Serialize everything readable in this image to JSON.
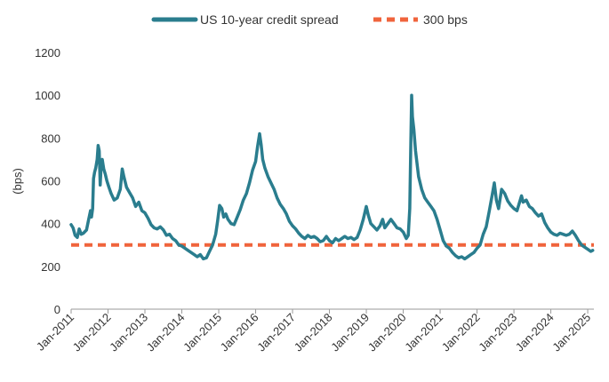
{
  "chart_data": {
    "type": "line",
    "ylabel": "(bps)",
    "ylim": [
      0,
      1200
    ],
    "yticks": [
      0,
      200,
      400,
      600,
      800,
      1000,
      1200
    ],
    "xlim": [
      "2011-01",
      "2025-03"
    ],
    "xticks": [
      "Jan-2011",
      "Jan-2012",
      "Jan-2013",
      "Jan-2014",
      "Jan-2015",
      "Jan-2016",
      "Jan-2017",
      "Jan-2018",
      "Jan-2019",
      "Jan-2020",
      "Jan-2021",
      "Jan-2022",
      "Jan-2023",
      "Jan-2024",
      "Jan-2025"
    ],
    "legend_position": "top-center",
    "series": [
      {
        "name": "US 10-year credit spread",
        "color": "#2a7d8e",
        "style": "solid",
        "points": [
          [
            "2011-01-01",
            395
          ],
          [
            "2011-01-20",
            380
          ],
          [
            "2011-02-10",
            345
          ],
          [
            "2011-03-01",
            335
          ],
          [
            "2011-03-20",
            375
          ],
          [
            "2011-04-10",
            350
          ],
          [
            "2011-05-01",
            355
          ],
          [
            "2011-06-01",
            370
          ],
          [
            "2011-06-20",
            415
          ],
          [
            "2011-07-10",
            460
          ],
          [
            "2011-07-20",
            430
          ],
          [
            "2011-08-01",
            470
          ],
          [
            "2011-08-10",
            610
          ],
          [
            "2011-08-20",
            640
          ],
          [
            "2011-09-01",
            660
          ],
          [
            "2011-09-15",
            700
          ],
          [
            "2011-09-25",
            765
          ],
          [
            "2011-10-05",
            740
          ],
          [
            "2011-10-15",
            580
          ],
          [
            "2011-10-25",
            680
          ],
          [
            "2011-11-05",
            700
          ],
          [
            "2011-11-20",
            655
          ],
          [
            "2011-12-05",
            630
          ],
          [
            "2011-12-20",
            600
          ],
          [
            "2012-01-10",
            570
          ],
          [
            "2012-02-01",
            540
          ],
          [
            "2012-03-01",
            510
          ],
          [
            "2012-04-01",
            520
          ],
          [
            "2012-05-01",
            560
          ],
          [
            "2012-05-20",
            655
          ],
          [
            "2012-06-05",
            620
          ],
          [
            "2012-07-01",
            570
          ],
          [
            "2012-08-01",
            545
          ],
          [
            "2012-09-01",
            520
          ],
          [
            "2012-10-01",
            480
          ],
          [
            "2012-11-01",
            500
          ],
          [
            "2012-12-01",
            460
          ],
          [
            "2013-01-01",
            450
          ],
          [
            "2013-02-01",
            425
          ],
          [
            "2013-03-01",
            395
          ],
          [
            "2013-04-01",
            380
          ],
          [
            "2013-05-01",
            375
          ],
          [
            "2013-06-01",
            385
          ],
          [
            "2013-07-01",
            370
          ],
          [
            "2013-08-01",
            345
          ],
          [
            "2013-09-01",
            350
          ],
          [
            "2013-10-01",
            330
          ],
          [
            "2013-11-01",
            320
          ],
          [
            "2013-12-01",
            300
          ],
          [
            "2014-01-01",
            295
          ],
          [
            "2014-02-01",
            285
          ],
          [
            "2014-03-01",
            275
          ],
          [
            "2014-04-01",
            265
          ],
          [
            "2014-05-01",
            255
          ],
          [
            "2014-06-01",
            245
          ],
          [
            "2014-07-01",
            255
          ],
          [
            "2014-08-01",
            235
          ],
          [
            "2014-09-01",
            240
          ],
          [
            "2014-10-01",
            270
          ],
          [
            "2014-11-01",
            300
          ],
          [
            "2014-12-01",
            350
          ],
          [
            "2014-12-20",
            410
          ],
          [
            "2015-01-10",
            485
          ],
          [
            "2015-02-01",
            470
          ],
          [
            "2015-02-20",
            430
          ],
          [
            "2015-03-10",
            445
          ],
          [
            "2015-04-01",
            420
          ],
          [
            "2015-05-01",
            400
          ],
          [
            "2015-06-01",
            395
          ],
          [
            "2015-07-01",
            430
          ],
          [
            "2015-08-01",
            465
          ],
          [
            "2015-09-01",
            510
          ],
          [
            "2015-10-01",
            540
          ],
          [
            "2015-11-01",
            590
          ],
          [
            "2015-12-01",
            650
          ],
          [
            "2016-01-01",
            690
          ],
          [
            "2016-01-20",
            760
          ],
          [
            "2016-02-10",
            820
          ],
          [
            "2016-02-25",
            770
          ],
          [
            "2016-03-10",
            700
          ],
          [
            "2016-04-01",
            660
          ],
          [
            "2016-05-01",
            620
          ],
          [
            "2016-06-01",
            590
          ],
          [
            "2016-07-01",
            560
          ],
          [
            "2016-08-01",
            520
          ],
          [
            "2016-09-01",
            490
          ],
          [
            "2016-10-01",
            470
          ],
          [
            "2016-11-01",
            445
          ],
          [
            "2016-12-01",
            410
          ],
          [
            "2017-01-01",
            390
          ],
          [
            "2017-02-01",
            375
          ],
          [
            "2017-03-01",
            355
          ],
          [
            "2017-04-01",
            340
          ],
          [
            "2017-05-01",
            330
          ],
          [
            "2017-06-01",
            345
          ],
          [
            "2017-07-01",
            335
          ],
          [
            "2017-08-01",
            340
          ],
          [
            "2017-09-01",
            330
          ],
          [
            "2017-10-01",
            315
          ],
          [
            "2017-11-01",
            320
          ],
          [
            "2017-12-01",
            340
          ],
          [
            "2018-01-01",
            320
          ],
          [
            "2018-02-01",
            310
          ],
          [
            "2018-03-01",
            330
          ],
          [
            "2018-04-01",
            320
          ],
          [
            "2018-05-01",
            330
          ],
          [
            "2018-06-01",
            340
          ],
          [
            "2018-07-01",
            330
          ],
          [
            "2018-08-01",
            335
          ],
          [
            "2018-09-01",
            325
          ],
          [
            "2018-10-01",
            335
          ],
          [
            "2018-11-01",
            370
          ],
          [
            "2018-12-01",
            420
          ],
          [
            "2019-01-01",
            480
          ],
          [
            "2019-01-20",
            440
          ],
          [
            "2019-02-15",
            400
          ],
          [
            "2019-03-15",
            385
          ],
          [
            "2019-04-15",
            370
          ],
          [
            "2019-05-15",
            390
          ],
          [
            "2019-06-10",
            420
          ],
          [
            "2019-07-01",
            380
          ],
          [
            "2019-08-01",
            400
          ],
          [
            "2019-09-01",
            420
          ],
          [
            "2019-10-01",
            400
          ],
          [
            "2019-11-01",
            380
          ],
          [
            "2019-12-01",
            375
          ],
          [
            "2020-01-01",
            360
          ],
          [
            "2020-02-01",
            330
          ],
          [
            "2020-02-20",
            345
          ],
          [
            "2020-03-05",
            470
          ],
          [
            "2020-03-15",
            780
          ],
          [
            "2020-03-23",
            1000
          ],
          [
            "2020-04-01",
            900
          ],
          [
            "2020-04-15",
            840
          ],
          [
            "2020-05-01",
            740
          ],
          [
            "2020-06-01",
            620
          ],
          [
            "2020-07-01",
            560
          ],
          [
            "2020-08-01",
            520
          ],
          [
            "2020-09-01",
            500
          ],
          [
            "2020-10-01",
            480
          ],
          [
            "2020-11-01",
            460
          ],
          [
            "2020-12-01",
            420
          ],
          [
            "2021-01-01",
            370
          ],
          [
            "2021-02-01",
            320
          ],
          [
            "2021-03-01",
            295
          ],
          [
            "2021-04-01",
            285
          ],
          [
            "2021-05-01",
            265
          ],
          [
            "2021-06-01",
            250
          ],
          [
            "2021-07-01",
            240
          ],
          [
            "2021-08-01",
            245
          ],
          [
            "2021-09-01",
            235
          ],
          [
            "2021-10-01",
            245
          ],
          [
            "2021-11-01",
            255
          ],
          [
            "2021-12-01",
            265
          ],
          [
            "2022-01-01",
            285
          ],
          [
            "2022-02-01",
            300
          ],
          [
            "2022-03-01",
            350
          ],
          [
            "2022-04-01",
            385
          ],
          [
            "2022-05-01",
            460
          ],
          [
            "2022-06-01",
            540
          ],
          [
            "2022-06-20",
            590
          ],
          [
            "2022-07-10",
            510
          ],
          [
            "2022-08-01",
            470
          ],
          [
            "2022-09-01",
            560
          ],
          [
            "2022-10-01",
            540
          ],
          [
            "2022-11-01",
            505
          ],
          [
            "2022-12-01",
            485
          ],
          [
            "2023-01-01",
            470
          ],
          [
            "2023-02-01",
            460
          ],
          [
            "2023-03-15",
            530
          ],
          [
            "2023-04-01",
            500
          ],
          [
            "2023-05-01",
            510
          ],
          [
            "2023-06-01",
            480
          ],
          [
            "2023-07-01",
            470
          ],
          [
            "2023-08-01",
            450
          ],
          [
            "2023-09-01",
            435
          ],
          [
            "2023-10-01",
            445
          ],
          [
            "2023-11-01",
            405
          ],
          [
            "2023-12-01",
            380
          ],
          [
            "2024-01-01",
            360
          ],
          [
            "2024-02-01",
            350
          ],
          [
            "2024-03-01",
            345
          ],
          [
            "2024-04-01",
            355
          ],
          [
            "2024-05-01",
            350
          ],
          [
            "2024-06-01",
            345
          ],
          [
            "2024-07-01",
            350
          ],
          [
            "2024-08-01",
            365
          ],
          [
            "2024-09-01",
            345
          ],
          [
            "2024-10-01",
            320
          ],
          [
            "2024-11-01",
            300
          ],
          [
            "2024-12-01",
            290
          ],
          [
            "2025-01-01",
            280
          ],
          [
            "2025-02-01",
            270
          ],
          [
            "2025-02-20",
            275
          ]
        ]
      },
      {
        "name": "300 bps",
        "color": "#f0643c",
        "style": "dashed",
        "points": [
          [
            "2011-01-01",
            300
          ],
          [
            "2025-03-01",
            300
          ]
        ]
      }
    ]
  }
}
